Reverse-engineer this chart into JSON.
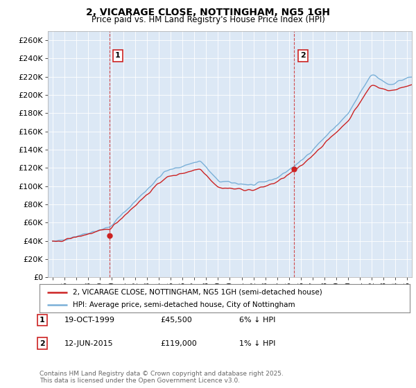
{
  "title": "2, VICARAGE CLOSE, NOTTINGHAM, NG5 1GH",
  "subtitle": "Price paid vs. HM Land Registry's House Price Index (HPI)",
  "ylabel_ticks": [
    "£0",
    "£20K",
    "£40K",
    "£60K",
    "£80K",
    "£100K",
    "£120K",
    "£140K",
    "£160K",
    "£180K",
    "£200K",
    "£220K",
    "£240K",
    "£260K"
  ],
  "ytick_values": [
    0,
    20000,
    40000,
    60000,
    80000,
    100000,
    120000,
    140000,
    160000,
    180000,
    200000,
    220000,
    240000,
    260000
  ],
  "ylim": [
    0,
    270000
  ],
  "background_color": "#ffffff",
  "plot_bg_color": "#dce8f5",
  "grid_color": "#ffffff",
  "hpi_color": "#7ab0d8",
  "price_color": "#cc2222",
  "marker1_x": 1999.8,
  "marker1_y": 45500,
  "marker2_x": 2015.45,
  "marker2_y": 119000,
  "sale1_label": "1",
  "sale2_label": "2",
  "legend_line1": "2, VICARAGE CLOSE, NOTTINGHAM, NG5 1GH (semi-detached house)",
  "legend_line2": "HPI: Average price, semi-detached house, City of Nottingham",
  "sale1_date": "19-OCT-1999",
  "sale1_price": "£45,500",
  "sale1_hpi": "6% ↓ HPI",
  "sale2_date": "12-JUN-2015",
  "sale2_price": "£119,000",
  "sale2_hpi": "1% ↓ HPI",
  "footer": "Contains HM Land Registry data © Crown copyright and database right 2025.\nThis data is licensed under the Open Government Licence v3.0.",
  "xmin": 1994.6,
  "xmax": 2025.4
}
